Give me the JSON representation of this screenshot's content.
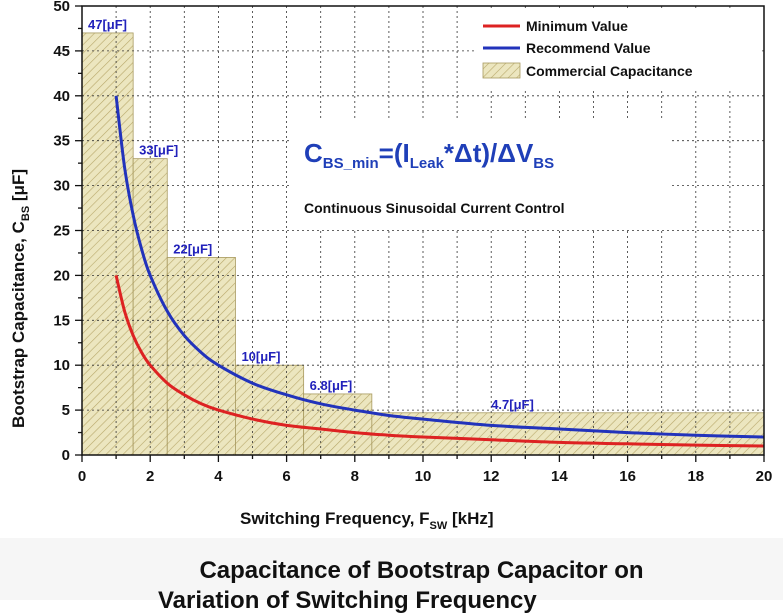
{
  "chart_data": {
    "type": "line",
    "xlabel": "Switching Frequency, F",
    "xlabel_sub": "SW",
    "xlabel_unit": " [kHz]",
    "ylabel": "Bootstrap Capacitance, C",
    "ylabel_sub": "BS",
    "ylabel_unit": " [μF]",
    "xlim": [
      0,
      20
    ],
    "ylim": [
      0,
      50
    ],
    "xticks": [
      0,
      2,
      4,
      6,
      8,
      10,
      12,
      14,
      16,
      18,
      20
    ],
    "yticks": [
      0,
      5,
      10,
      15,
      20,
      25,
      30,
      35,
      40,
      45,
      50
    ],
    "grid": true,
    "legend_position": "top-right",
    "series": [
      {
        "name": "Minimum Value",
        "color": "#dd2222",
        "x": [
          1,
          1.25,
          1.5,
          1.75,
          2,
          2.5,
          3,
          3.5,
          4,
          5,
          6,
          7,
          8,
          9,
          10,
          12,
          14,
          16,
          18,
          20
        ],
        "y": [
          20,
          16,
          13.3,
          11.4,
          10,
          8,
          6.7,
          5.7,
          5,
          4,
          3.3,
          2.9,
          2.5,
          2.2,
          2,
          1.7,
          1.4,
          1.25,
          1.1,
          1.0
        ]
      },
      {
        "name": "Recommend Value",
        "color": "#2233bb",
        "x": [
          1,
          1.25,
          1.5,
          1.75,
          2,
          2.5,
          3,
          3.5,
          4,
          5,
          6,
          7,
          8,
          9,
          10,
          12,
          14,
          16,
          18,
          20
        ],
        "y": [
          40,
          32,
          26.7,
          22.9,
          20,
          16,
          13.3,
          11.4,
          10,
          8,
          6.7,
          5.7,
          5,
          4.4,
          4,
          3.3,
          2.9,
          2.5,
          2.2,
          2.0
        ]
      }
    ],
    "bars": {
      "name": "Commercial Capacitance",
      "color": "#e8e0b4",
      "segments": [
        {
          "x0": 0,
          "x1": 1.5,
          "value": 47,
          "label": "47[μF]"
        },
        {
          "x0": 1.5,
          "x1": 2.5,
          "value": 33,
          "label": "33[μF]"
        },
        {
          "x0": 2.5,
          "x1": 4.5,
          "value": 22,
          "label": "22[μF]"
        },
        {
          "x0": 4.5,
          "x1": 6.5,
          "value": 10,
          "label": "10[μF]"
        },
        {
          "x0": 6.5,
          "x1": 8.5,
          "value": 6.8,
          "label": "6.8[μF]"
        },
        {
          "x0": 8.5,
          "x1": 20,
          "value": 4.7,
          "label": "4.7[μF]"
        }
      ]
    },
    "formula": {
      "c": "C",
      "c_sub": "BS_min",
      "eq": "=(I",
      "i_sub": "Leak",
      "mid": "*Δt)/ΔV",
      "v_sub": "BS"
    },
    "annotation": "Continuous Sinusoidal Current Control"
  },
  "caption": {
    "line1": "Capacitance of Bootstrap Capacitor on",
    "line2": "Variation of Switching Frequency"
  }
}
